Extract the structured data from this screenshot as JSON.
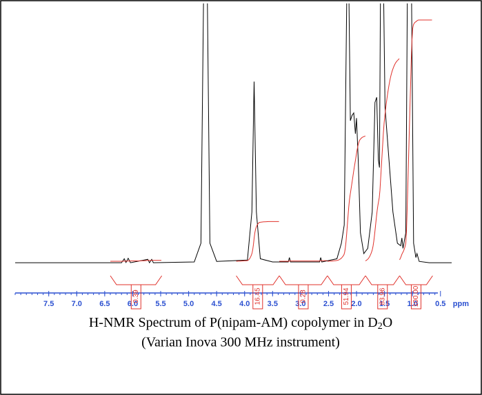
{
  "chart_data": {
    "type": "nmr",
    "caption": [
      "H-NMR Spectrum of P(nipam-AM) copolymer in D",
      "2",
      "O"
    ],
    "subcaption": "(Varian Inova 300 MHz instrument)",
    "x_label": "ppm",
    "xlim": [
      8.1,
      0.3
    ],
    "xticks": [
      7.5,
      7.0,
      6.5,
      6.0,
      5.5,
      5.0,
      4.5,
      4.0,
      3.5,
      3.0,
      2.5,
      2.0,
      1.5,
      1.0,
      0.5
    ],
    "xtick_labels": [
      "7.5",
      "7.0",
      "6.5",
      "6.0",
      "5.5",
      "5.0",
      "4.5",
      "4.0",
      "3.5",
      "3.0",
      "2.5",
      "2.0",
      "1.5",
      "1.0",
      "0.5"
    ],
    "ylim": [
      0,
      100
    ],
    "color": "#000000",
    "integral_color": "#e0302a",
    "axis_color": "#2a4fd0",
    "x": [
      8.1,
      6.2,
      6.15,
      6.12,
      6.08,
      6.04,
      5.73,
      5.7,
      5.66,
      5.63,
      4.9,
      4.78,
      4.73,
      4.67,
      4.62,
      4.5,
      3.95,
      3.87,
      3.83,
      3.79,
      3.72,
      3.5,
      3.22,
      3.2,
      3.18,
      2.66,
      2.64,
      2.62,
      2.35,
      2.27,
      2.22,
      2.17,
      2.14,
      2.11,
      2.08,
      2.05,
      2.02,
      2.0,
      1.97,
      1.93,
      1.87,
      1.8,
      1.72,
      1.67,
      1.64,
      1.61,
      1.59,
      1.57,
      1.52,
      1.49,
      1.42,
      1.35,
      1.27,
      1.21,
      1.19,
      1.17,
      1.12,
      1.09,
      1.02,
      0.98,
      0.94,
      0.92,
      0.88,
      0.7,
      0.3
    ],
    "values": [
      0.5,
      0.5,
      2,
      0.6,
      2.2,
      0.5,
      1.8,
      0.5,
      1.8,
      0.5,
      0.8,
      8,
      110,
      110,
      8,
      1,
      1.5,
      20,
      70,
      20,
      2,
      0.8,
      0.8,
      2.5,
      0.8,
      0.8,
      2.5,
      0.8,
      2,
      8,
      15,
      110,
      110,
      55,
      57,
      58,
      50,
      56,
      40,
      12,
      4,
      6,
      20,
      62,
      64,
      40,
      37,
      110,
      110,
      60,
      40,
      20,
      8,
      7,
      10,
      6,
      12,
      110,
      110,
      8,
      2.5,
      4,
      1,
      0.5,
      0.5
    ],
    "integrals": [
      {
        "range": [
          6.4,
          5.48
        ],
        "value": 0.39
      },
      {
        "range": [
          4.15,
          3.38
        ],
        "value": 16.45
      },
      {
        "range": [
          3.38,
          2.52
        ],
        "value": 0.28
      },
      {
        "range": [
          2.52,
          1.84
        ],
        "value": 51.94
      },
      {
        "range": [
          1.84,
          1.23
        ],
        "value": 83.96
      },
      {
        "range": [
          1.23,
          0.64
        ],
        "value": 100,
        "label": "100.00"
      }
    ]
  }
}
